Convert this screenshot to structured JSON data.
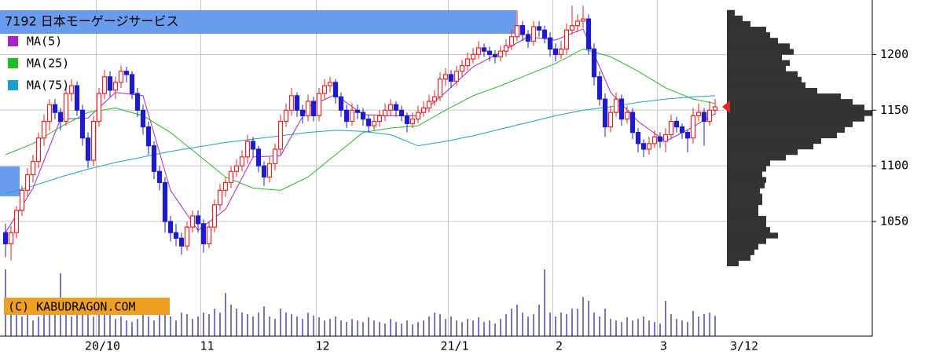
{
  "chart_data": {
    "type": "candlestick",
    "title": "7192 日本モーゲージサービス",
    "copyright": "(C) KABUDRAGON.COM",
    "latest_date": "3/12",
    "categories": [
      null,
      null,
      null,
      null,
      null,
      null,
      null,
      null,
      null,
      null,
      null,
      null,
      null,
      null,
      null,
      null,
      null,
      "20/10",
      null,
      null,
      null,
      null,
      null,
      null,
      null,
      null,
      null,
      null,
      null,
      null,
      null,
      null,
      null,
      null,
      null,
      null,
      "11",
      null,
      null,
      null,
      null,
      null,
      null,
      null,
      null,
      null,
      null,
      null,
      null,
      null,
      null,
      null,
      null,
      null,
      null,
      null,
      null,
      "12",
      null,
      null,
      null,
      null,
      null,
      null,
      null,
      null,
      null,
      null,
      null,
      null,
      null,
      null,
      null,
      null,
      null,
      null,
      null,
      null,
      null,
      null,
      null,
      "21/1",
      null,
      null,
      null,
      null,
      null,
      null,
      null,
      null,
      null,
      null,
      null,
      null,
      null,
      null,
      null,
      null,
      null,
      null,
      "2",
      null,
      null,
      null,
      null,
      null,
      null,
      null,
      null,
      null,
      null,
      null,
      null,
      null,
      null,
      null,
      null,
      null,
      null,
      "3",
      null,
      null,
      null,
      null,
      null,
      null,
      null,
      null,
      null,
      null
    ],
    "ohlc": [
      [
        1040,
        1048,
        1018,
        1030
      ],
      [
        1030,
        1046,
        1015,
        1040
      ],
      [
        1040,
        1064,
        1035,
        1060
      ],
      [
        1060,
        1082,
        1055,
        1078
      ],
      [
        1078,
        1098,
        1072,
        1092
      ],
      [
        1092,
        1110,
        1085,
        1104
      ],
      [
        1104,
        1130,
        1098,
        1125
      ],
      [
        1125,
        1146,
        1118,
        1140
      ],
      [
        1140,
        1160,
        1132,
        1155
      ],
      [
        1155,
        1160,
        1142,
        1148
      ],
      [
        1148,
        1152,
        1132,
        1140
      ],
      [
        1140,
        1170,
        1136,
        1165
      ],
      [
        1165,
        1178,
        1158,
        1172
      ],
      [
        1172,
        1176,
        1145,
        1150
      ],
      [
        1150,
        1155,
        1118,
        1125
      ],
      [
        1125,
        1130,
        1098,
        1105
      ],
      [
        1105,
        1145,
        1100,
        1140
      ],
      [
        1140,
        1170,
        1135,
        1165
      ],
      [
        1165,
        1186,
        1160,
        1180
      ],
      [
        1180,
        1185,
        1162,
        1168
      ],
      [
        1168,
        1180,
        1160,
        1175
      ],
      [
        1175,
        1190,
        1170,
        1185
      ],
      [
        1185,
        1189,
        1175,
        1182
      ],
      [
        1182,
        1185,
        1160,
        1165
      ],
      [
        1165,
        1170,
        1144,
        1150
      ],
      [
        1150,
        1155,
        1128,
        1135
      ],
      [
        1135,
        1140,
        1110,
        1118
      ],
      [
        1118,
        1122,
        1088,
        1095
      ],
      [
        1095,
        1100,
        1078,
        1085
      ],
      [
        1085,
        1090,
        1040,
        1050
      ],
      [
        1050,
        1055,
        1032,
        1040
      ],
      [
        1040,
        1048,
        1028,
        1035
      ],
      [
        1035,
        1040,
        1020,
        1028
      ],
      [
        1028,
        1050,
        1024,
        1045
      ],
      [
        1045,
        1060,
        1040,
        1055
      ],
      [
        1055,
        1060,
        1040,
        1048
      ],
      [
        1048,
        1052,
        1022,
        1030
      ],
      [
        1030,
        1050,
        1026,
        1045
      ],
      [
        1045,
        1070,
        1040,
        1065
      ],
      [
        1065,
        1084,
        1060,
        1078
      ],
      [
        1078,
        1090,
        1072,
        1085
      ],
      [
        1085,
        1100,
        1080,
        1095
      ],
      [
        1095,
        1106,
        1090,
        1100
      ],
      [
        1100,
        1114,
        1095,
        1108
      ],
      [
        1108,
        1128,
        1102,
        1122
      ],
      [
        1122,
        1126,
        1108,
        1115
      ],
      [
        1115,
        1118,
        1094,
        1100
      ],
      [
        1100,
        1104,
        1082,
        1090
      ],
      [
        1090,
        1108,
        1085,
        1102
      ],
      [
        1102,
        1120,
        1096,
        1115
      ],
      [
        1115,
        1146,
        1110,
        1140
      ],
      [
        1140,
        1156,
        1135,
        1150
      ],
      [
        1150,
        1170,
        1145,
        1163
      ],
      [
        1163,
        1166,
        1144,
        1150
      ],
      [
        1150,
        1155,
        1138,
        1145
      ],
      [
        1145,
        1164,
        1140,
        1158
      ],
      [
        1158,
        1162,
        1140,
        1145
      ],
      [
        1145,
        1170,
        1140,
        1165
      ],
      [
        1165,
        1178,
        1160,
        1172
      ],
      [
        1172,
        1180,
        1166,
        1175
      ],
      [
        1175,
        1178,
        1156,
        1162
      ],
      [
        1162,
        1166,
        1144,
        1150
      ],
      [
        1150,
        1155,
        1134,
        1140
      ],
      [
        1140,
        1156,
        1136,
        1150
      ],
      [
        1150,
        1155,
        1142,
        1148
      ],
      [
        1148,
        1152,
        1136,
        1142
      ],
      [
        1142,
        1146,
        1130,
        1136
      ],
      [
        1136,
        1145,
        1132,
        1140
      ],
      [
        1140,
        1150,
        1135,
        1145
      ],
      [
        1145,
        1156,
        1140,
        1150
      ],
      [
        1150,
        1160,
        1145,
        1155
      ],
      [
        1155,
        1158,
        1144,
        1150
      ],
      [
        1150,
        1154,
        1140,
        1145
      ],
      [
        1145,
        1148,
        1130,
        1138
      ],
      [
        1138,
        1148,
        1134,
        1142
      ],
      [
        1142,
        1154,
        1138,
        1148
      ],
      [
        1148,
        1158,
        1144,
        1152
      ],
      [
        1152,
        1164,
        1148,
        1158
      ],
      [
        1158,
        1168,
        1154,
        1162
      ],
      [
        1162,
        1184,
        1158,
        1178
      ],
      [
        1178,
        1188,
        1172,
        1182
      ],
      [
        1182,
        1186,
        1170,
        1176
      ],
      [
        1176,
        1190,
        1172,
        1185
      ],
      [
        1185,
        1195,
        1180,
        1190
      ],
      [
        1190,
        1202,
        1186,
        1196
      ],
      [
        1196,
        1206,
        1192,
        1200
      ],
      [
        1200,
        1212,
        1196,
        1206
      ],
      [
        1206,
        1210,
        1198,
        1203
      ],
      [
        1203,
        1207,
        1194,
        1200
      ],
      [
        1200,
        1204,
        1192,
        1198
      ],
      [
        1198,
        1208,
        1194,
        1203
      ],
      [
        1203,
        1214,
        1198,
        1208
      ],
      [
        1208,
        1222,
        1204,
        1216
      ],
      [
        1216,
        1240,
        1212,
        1226
      ],
      [
        1226,
        1230,
        1212,
        1218
      ],
      [
        1218,
        1222,
        1206,
        1212
      ],
      [
        1212,
        1230,
        1208,
        1225
      ],
      [
        1225,
        1230,
        1216,
        1222
      ],
      [
        1222,
        1226,
        1210,
        1215
      ],
      [
        1215,
        1220,
        1198,
        1205
      ],
      [
        1205,
        1210,
        1194,
        1200
      ],
      [
        1200,
        1212,
        1196,
        1205
      ],
      [
        1205,
        1228,
        1200,
        1222
      ],
      [
        1222,
        1244,
        1218,
        1226
      ],
      [
        1226,
        1236,
        1220,
        1230
      ],
      [
        1230,
        1244,
        1224,
        1232
      ],
      [
        1232,
        1236,
        1200,
        1205
      ],
      [
        1205,
        1210,
        1172,
        1180
      ],
      [
        1180,
        1185,
        1154,
        1160
      ],
      [
        1160,
        1165,
        1126,
        1135
      ],
      [
        1135,
        1154,
        1130,
        1148
      ],
      [
        1148,
        1166,
        1144,
        1160
      ],
      [
        1160,
        1164,
        1136,
        1142
      ],
      [
        1142,
        1154,
        1138,
        1148
      ],
      [
        1148,
        1152,
        1124,
        1130
      ],
      [
        1130,
        1134,
        1112,
        1120
      ],
      [
        1120,
        1124,
        1108,
        1115
      ],
      [
        1115,
        1126,
        1110,
        1120
      ],
      [
        1120,
        1132,
        1116,
        1126
      ],
      [
        1126,
        1130,
        1116,
        1122
      ],
      [
        1122,
        1134,
        1112,
        1128
      ],
      [
        1128,
        1146,
        1124,
        1140
      ],
      [
        1140,
        1144,
        1130,
        1135
      ],
      [
        1135,
        1138,
        1124,
        1130
      ],
      [
        1130,
        1132,
        1112,
        1125
      ],
      [
        1125,
        1152,
        1120,
        1145
      ],
      [
        1145,
        1156,
        1140,
        1148
      ],
      [
        1148,
        1152,
        1118,
        1140
      ],
      [
        1140,
        1158,
        1136,
        1150
      ],
      [
        1150,
        1160,
        1146,
        1153
      ]
    ],
    "up_color": "#ee2222",
    "down_color": "#1c1ccc",
    "ylim": [
      947,
      1249
    ],
    "yticks": [
      1050,
      1100,
      1150,
      1200
    ],
    "grid": true,
    "series": [
      {
        "name": "MA(5)",
        "color": "#aa22cc",
        "x": [
          0,
          5,
          10,
          15,
          20,
          25,
          30,
          35,
          40,
          45,
          50,
          55,
          60,
          65,
          70,
          75,
          80,
          85,
          90,
          95,
          100,
          105,
          110,
          115,
          120,
          125,
          129
        ],
        "values": [
          1040,
          1080,
          1142,
          1143,
          1166,
          1163,
          1078,
          1042,
          1061,
          1108,
          1109,
          1153,
          1164,
          1146,
          1145,
          1145,
          1166,
          1189,
          1202,
          1216,
          1213,
          1223,
          1166,
          1140,
          1122,
          1135,
          1147
        ]
      },
      {
        "name": "MA(25)",
        "color": "#22bb22",
        "x": [
          0,
          5,
          10,
          15,
          20,
          25,
          30,
          35,
          40,
          45,
          50,
          55,
          60,
          65,
          70,
          75,
          80,
          85,
          90,
          95,
          100,
          105,
          110,
          115,
          120,
          125,
          129
        ],
        "values": [
          1110,
          1120,
          1135,
          1148,
          1152,
          1145,
          1130,
          1110,
          1090,
          1080,
          1078,
          1090,
          1110,
          1130,
          1134,
          1136,
          1150,
          1163,
          1172,
          1182,
          1192,
          1205,
          1198,
          1185,
          1170,
          1160,
          1156
        ]
      },
      {
        "name": "MA(75)",
        "color": "#1a9fd0",
        "x": [
          0,
          5,
          10,
          15,
          20,
          25,
          30,
          35,
          40,
          45,
          50,
          55,
          60,
          65,
          70,
          75,
          80,
          85,
          90,
          95,
          100,
          105,
          110,
          115,
          120,
          125,
          129
        ],
        "values": [
          1075,
          1082,
          1090,
          1097,
          1103,
          1108,
          1113,
          1117,
          1121,
          1124,
          1127,
          1130,
          1132,
          1131,
          1128,
          1118,
          1122,
          1127,
          1133,
          1139,
          1145,
          1150,
          1153,
          1157,
          1160,
          1162,
          1163
        ]
      }
    ],
    "volume": {
      "color": "#4a4aa8",
      "ylim": [
        0,
        100
      ],
      "values": [
        85,
        40,
        30,
        25,
        30,
        20,
        25,
        35,
        30,
        28,
        80,
        35,
        25,
        30,
        45,
        30,
        25,
        30,
        40,
        28,
        22,
        25,
        20,
        18,
        22,
        28,
        25,
        20,
        30,
        35,
        25,
        20,
        30,
        28,
        22,
        25,
        30,
        28,
        35,
        30,
        55,
        40,
        35,
        30,
        28,
        25,
        30,
        38,
        25,
        22,
        35,
        30,
        28,
        25,
        22,
        30,
        26,
        24,
        20,
        22,
        25,
        20,
        18,
        22,
        20,
        18,
        24,
        20,
        18,
        16,
        22,
        18,
        16,
        20,
        15,
        18,
        20,
        25,
        30,
        28,
        22,
        25,
        20,
        18,
        22,
        20,
        24,
        18,
        20,
        16,
        22,
        28,
        35,
        40,
        30,
        25,
        28,
        40,
        85,
        30,
        25,
        30,
        28,
        35,
        35,
        50,
        45,
        30,
        25,
        35,
        22,
        20,
        18,
        24,
        20,
        22,
        25,
        20,
        18,
        16,
        45,
        28,
        22,
        20,
        18,
        32,
        25,
        28,
        30,
        26
      ]
    },
    "volume_profile": {
      "color": "#333333",
      "xlim": [
        0,
        185
      ],
      "bins": [
        1010,
        1015,
        1020,
        1025,
        1030,
        1035,
        1040,
        1045,
        1050,
        1055,
        1060,
        1065,
        1070,
        1075,
        1080,
        1085,
        1090,
        1095,
        1100,
        1105,
        1110,
        1115,
        1120,
        1125,
        1130,
        1135,
        1140,
        1145,
        1150,
        1155,
        1160,
        1165,
        1170,
        1175,
        1180,
        1185,
        1190,
        1195,
        1200,
        1205,
        1210,
        1215,
        1220,
        1225,
        1230,
        1235,
        1240
      ],
      "values": [
        15,
        30,
        35,
        40,
        50,
        65,
        55,
        50,
        50,
        40,
        40,
        45,
        45,
        42,
        48,
        50,
        45,
        50,
        55,
        75,
        90,
        110,
        120,
        140,
        150,
        160,
        175,
        185,
        175,
        160,
        145,
        115,
        100,
        95,
        90,
        75,
        80,
        70,
        85,
        80,
        65,
        55,
        50,
        30,
        20,
        10
      ]
    }
  }
}
